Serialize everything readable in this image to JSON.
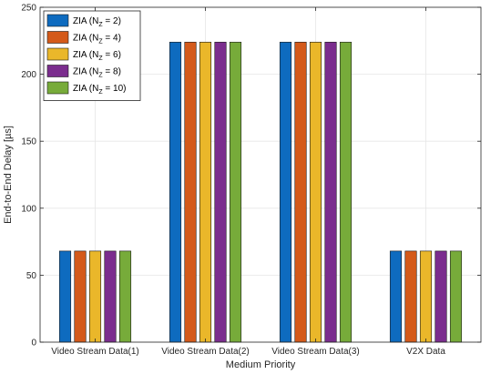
{
  "chart_data": {
    "type": "bar",
    "xlabel": "Medium Priority",
    "ylabel": "End-to-End Delay [µs]",
    "ylim": [
      0,
      250
    ],
    "yticks": [
      0,
      50,
      100,
      150,
      200,
      250
    ],
    "grid": true,
    "legend_position": "top-left",
    "categories": [
      "Video Stream Data(1)",
      "Video Stream Data(2)",
      "Video Stream Data(3)",
      "V2X Data"
    ],
    "series": [
      {
        "name": "ZIA (N_Z = 2)",
        "base": "ZIA (N",
        "sub": "Z",
        "rest": " = 2)",
        "color": "#0e6bbf",
        "values": [
          68,
          224,
          224,
          68
        ]
      },
      {
        "name": "ZIA (N_Z = 4)",
        "base": "ZIA (N",
        "sub": "Z",
        "rest": " = 4)",
        "color": "#d45a1a",
        "values": [
          68,
          224,
          224,
          68
        ]
      },
      {
        "name": "ZIA (N_Z = 6)",
        "base": "ZIA (N",
        "sub": "Z",
        "rest": " = 6)",
        "color": "#eab72a",
        "values": [
          68,
          224,
          224,
          68
        ]
      },
      {
        "name": "ZIA (N_Z = 8)",
        "base": "ZIA (N",
        "sub": "Z",
        "rest": " = 8)",
        "color": "#7b2d8e",
        "values": [
          68,
          224,
          224,
          68
        ]
      },
      {
        "name": "ZIA (N_Z = 10)",
        "base": "ZIA (N",
        "sub": "Z",
        "rest": " = 10)",
        "color": "#77ab3a",
        "values": [
          68,
          224,
          224,
          68
        ]
      }
    ]
  }
}
